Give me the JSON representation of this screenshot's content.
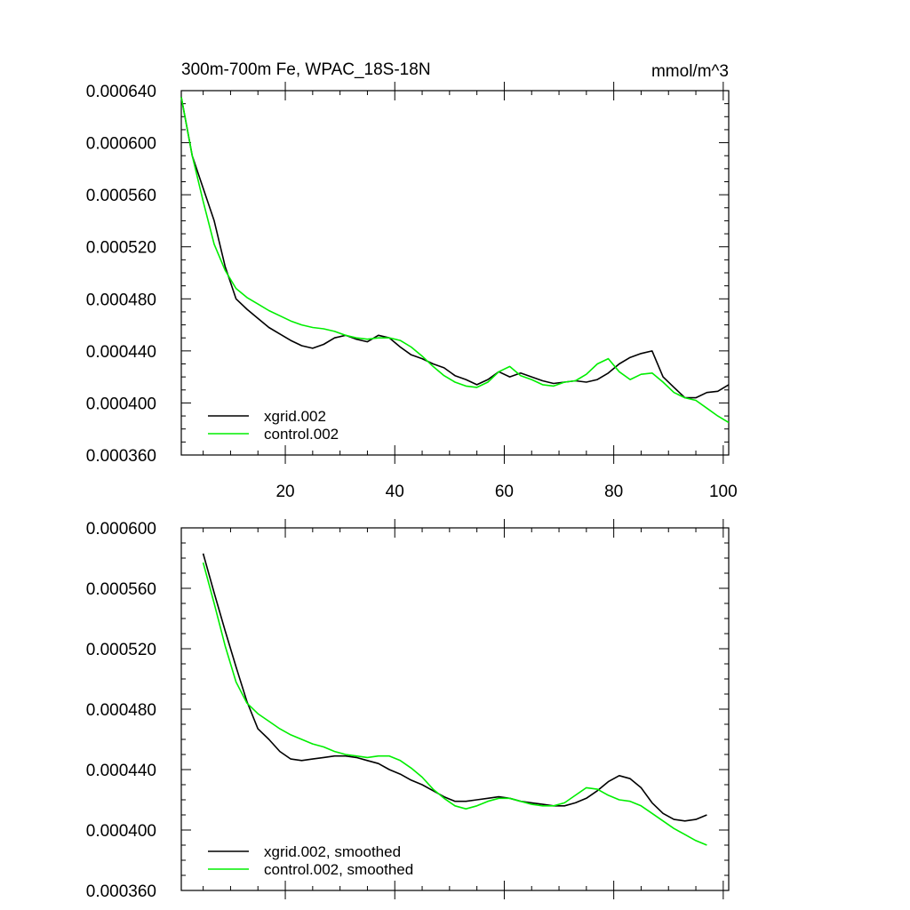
{
  "chart_data": [
    {
      "type": "line",
      "title": "300m-700m Fe, WPAC_18S-18N",
      "units": "mmol/m^3",
      "xlim": [
        1,
        101
      ],
      "ylim": [
        0.00036,
        0.00064
      ],
      "xticks": [
        20,
        40,
        60,
        80,
        100
      ],
      "yticks": [
        "0.000360",
        "0.000400",
        "0.000440",
        "0.000480",
        "0.000520",
        "0.000560",
        "0.000600",
        "0.000640"
      ],
      "legend_position": "bottom-left",
      "series": [
        {
          "name": "xgrid.002",
          "color": "#000000",
          "x": [
            1,
            3,
            5,
            7,
            9,
            11,
            13,
            15,
            17,
            19,
            21,
            23,
            25,
            27,
            29,
            31,
            33,
            35,
            37,
            39,
            41,
            43,
            45,
            47,
            49,
            51,
            53,
            55,
            57,
            59,
            61,
            63,
            65,
            67,
            69,
            71,
            73,
            75,
            77,
            79,
            81,
            83,
            85,
            87,
            89,
            91,
            93,
            95,
            97,
            99,
            101
          ],
          "values": [
            0.000635,
            0.00059,
            0.000565,
            0.00054,
            0.000505,
            0.00048,
            0.000472,
            0.000465,
            0.000458,
            0.000453,
            0.000448,
            0.000444,
            0.000442,
            0.000445,
            0.00045,
            0.000452,
            0.000449,
            0.000447,
            0.000452,
            0.00045,
            0.000443,
            0.000437,
            0.000434,
            0.00043,
            0.000427,
            0.000421,
            0.000418,
            0.000414,
            0.000418,
            0.000424,
            0.00042,
            0.000423,
            0.00042,
            0.000417,
            0.000415,
            0.000416,
            0.000417,
            0.000416,
            0.000418,
            0.000423,
            0.00043,
            0.000435,
            0.000438,
            0.00044,
            0.00042,
            0.000412,
            0.000404,
            0.000404,
            0.000408,
            0.000409,
            0.000414
          ]
        },
        {
          "name": "control.002",
          "color": "#00ee00",
          "x": [
            1,
            3,
            5,
            7,
            9,
            11,
            13,
            15,
            17,
            19,
            21,
            23,
            25,
            27,
            29,
            31,
            33,
            35,
            37,
            39,
            41,
            43,
            45,
            47,
            49,
            51,
            53,
            55,
            57,
            59,
            61,
            63,
            65,
            67,
            69,
            71,
            73,
            75,
            77,
            79,
            81,
            83,
            85,
            87,
            89,
            91,
            93,
            95,
            97,
            99,
            101
          ],
          "values": [
            0.000635,
            0.00059,
            0.000555,
            0.000522,
            0.000502,
            0.000488,
            0.000481,
            0.000476,
            0.000471,
            0.000467,
            0.000463,
            0.00046,
            0.000458,
            0.000457,
            0.000455,
            0.000452,
            0.00045,
            0.000449,
            0.00045,
            0.00045,
            0.000448,
            0.000443,
            0.000436,
            0.000428,
            0.000421,
            0.000416,
            0.000413,
            0.000412,
            0.000416,
            0.000424,
            0.000428,
            0.000421,
            0.000418,
            0.000414,
            0.000413,
            0.000416,
            0.000417,
            0.000422,
            0.00043,
            0.000434,
            0.000424,
            0.000418,
            0.000422,
            0.000423,
            0.000416,
            0.000408,
            0.000404,
            0.000402,
            0.000396,
            0.00039,
            0.000385
          ]
        }
      ]
    },
    {
      "type": "line",
      "title": "",
      "xlim": [
        1,
        101
      ],
      "ylim": [
        0.00036,
        0.0006
      ],
      "xticks": [
        20,
        40,
        60,
        80,
        100
      ],
      "yticks": [
        "0.000360",
        "0.000400",
        "0.000440",
        "0.000480",
        "0.000520",
        "0.000560",
        "0.000600"
      ],
      "legend_position": "bottom-left",
      "series": [
        {
          "name": "xgrid.002, smoothed",
          "color": "#000000",
          "x": [
            5,
            7,
            9,
            11,
            13,
            15,
            17,
            19,
            21,
            23,
            25,
            27,
            29,
            31,
            33,
            35,
            37,
            39,
            41,
            43,
            45,
            47,
            49,
            51,
            53,
            55,
            57,
            59,
            61,
            63,
            65,
            67,
            69,
            71,
            73,
            75,
            77,
            79,
            81,
            83,
            85,
            87,
            89,
            91,
            93,
            95,
            97
          ],
          "values": [
            0.000583,
            0.000557,
            0.000532,
            0.000508,
            0.000485,
            0.000467,
            0.00046,
            0.000452,
            0.000447,
            0.000446,
            0.000447,
            0.000448,
            0.000449,
            0.000449,
            0.000448,
            0.000446,
            0.000444,
            0.00044,
            0.000437,
            0.000433,
            0.00043,
            0.000426,
            0.000422,
            0.000419,
            0.000419,
            0.00042,
            0.000421,
            0.000422,
            0.000421,
            0.000419,
            0.000418,
            0.000417,
            0.000416,
            0.000416,
            0.000418,
            0.000421,
            0.000426,
            0.000432,
            0.000436,
            0.000434,
            0.000428,
            0.000418,
            0.000411,
            0.000407,
            0.000406,
            0.000407,
            0.00041
          ]
        },
        {
          "name": "control.002, smoothed",
          "color": "#00ee00",
          "x": [
            5,
            7,
            9,
            11,
            13,
            15,
            17,
            19,
            21,
            23,
            25,
            27,
            29,
            31,
            33,
            35,
            37,
            39,
            41,
            43,
            45,
            47,
            49,
            51,
            53,
            55,
            57,
            59,
            61,
            63,
            65,
            67,
            69,
            71,
            73,
            75,
            77,
            79,
            81,
            83,
            85,
            87,
            89,
            91,
            93,
            95,
            97
          ],
          "values": [
            0.000577,
            0.00055,
            0.000522,
            0.000498,
            0.000484,
            0.000477,
            0.000472,
            0.000467,
            0.000463,
            0.00046,
            0.000457,
            0.000455,
            0.000452,
            0.00045,
            0.000449,
            0.000448,
            0.000449,
            0.000449,
            0.000446,
            0.000441,
            0.000435,
            0.000427,
            0.000421,
            0.000416,
            0.000414,
            0.000416,
            0.000419,
            0.000421,
            0.000421,
            0.000419,
            0.000417,
            0.000416,
            0.000416,
            0.000418,
            0.000423,
            0.000428,
            0.000427,
            0.000423,
            0.00042,
            0.000419,
            0.000416,
            0.000411,
            0.000406,
            0.000401,
            0.000397,
            0.000393,
            0.00039
          ]
        }
      ]
    }
  ]
}
